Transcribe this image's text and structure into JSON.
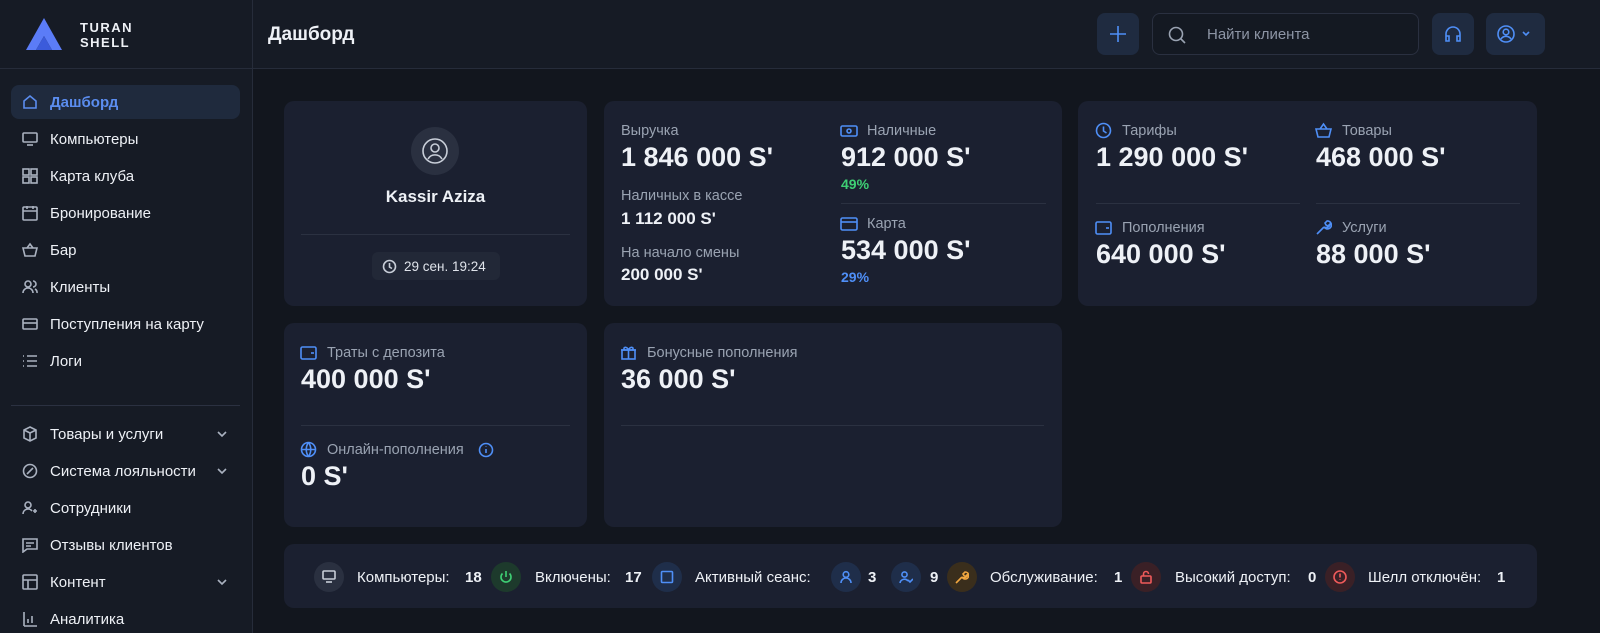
{
  "brand": {
    "line1": "TURAN",
    "line2": "SHELL"
  },
  "header": {
    "title": "Дашборд",
    "search_placeholder": "Найти клиента"
  },
  "sidebar": {
    "items": [
      "Дашборд",
      "Компьютеры",
      "Карта клуба",
      "Бронирование",
      "Бар",
      "Клиенты",
      "Поступления на карту",
      "Логи"
    ],
    "groups": [
      "Товары и услуги",
      "Система лояльности",
      "Сотрудники",
      "Отзывы клиентов",
      "Контент",
      "Аналитика"
    ]
  },
  "profile": {
    "name": "Kassir Aziza",
    "time": "29 сен. 19:24"
  },
  "revenue": {
    "total_label": "Выручка",
    "total": "1 846 000 S'",
    "cash_register_label": "Наличных в кассе",
    "cash_register": "1 112 000 S'",
    "shift_start_label": "На начало смены",
    "shift_start": "200 000 S'",
    "cash_label": "Наличные",
    "cash": "912 000 S'",
    "cash_share": "49%",
    "card_label": "Карта",
    "card": "534 000 S'",
    "card_share": "29%"
  },
  "sales": {
    "tariffs_label": "Тарифы",
    "tariffs": "1 290 000 S'",
    "goods_label": "Товары",
    "goods": "468 000 S'",
    "topups_label": "Пополнения",
    "topups": "640 000 S'",
    "services_label": "Услуги",
    "services": "88 000 S'"
  },
  "deposit": {
    "spend_label": "Траты с депозита",
    "spend": "400 000 S'",
    "online_label": "Онлайн-пополнения",
    "online": "0 S'"
  },
  "bonus": {
    "label": "Бонусные пополнения",
    "value": "36 000 S'"
  },
  "status": {
    "computers_label": "Компьютеры:",
    "computers": "18",
    "on_label": "Включены:",
    "on": "17",
    "active_label": "Активный сеанс:",
    "active_users": "3",
    "active_guests": "9",
    "maintenance_label": "Обслуживание:",
    "maintenance": "1",
    "high_access_label": "Высокий доступ:",
    "high_access": "0",
    "shell_off_label": "Шелл отключён:",
    "shell_off": "1"
  }
}
